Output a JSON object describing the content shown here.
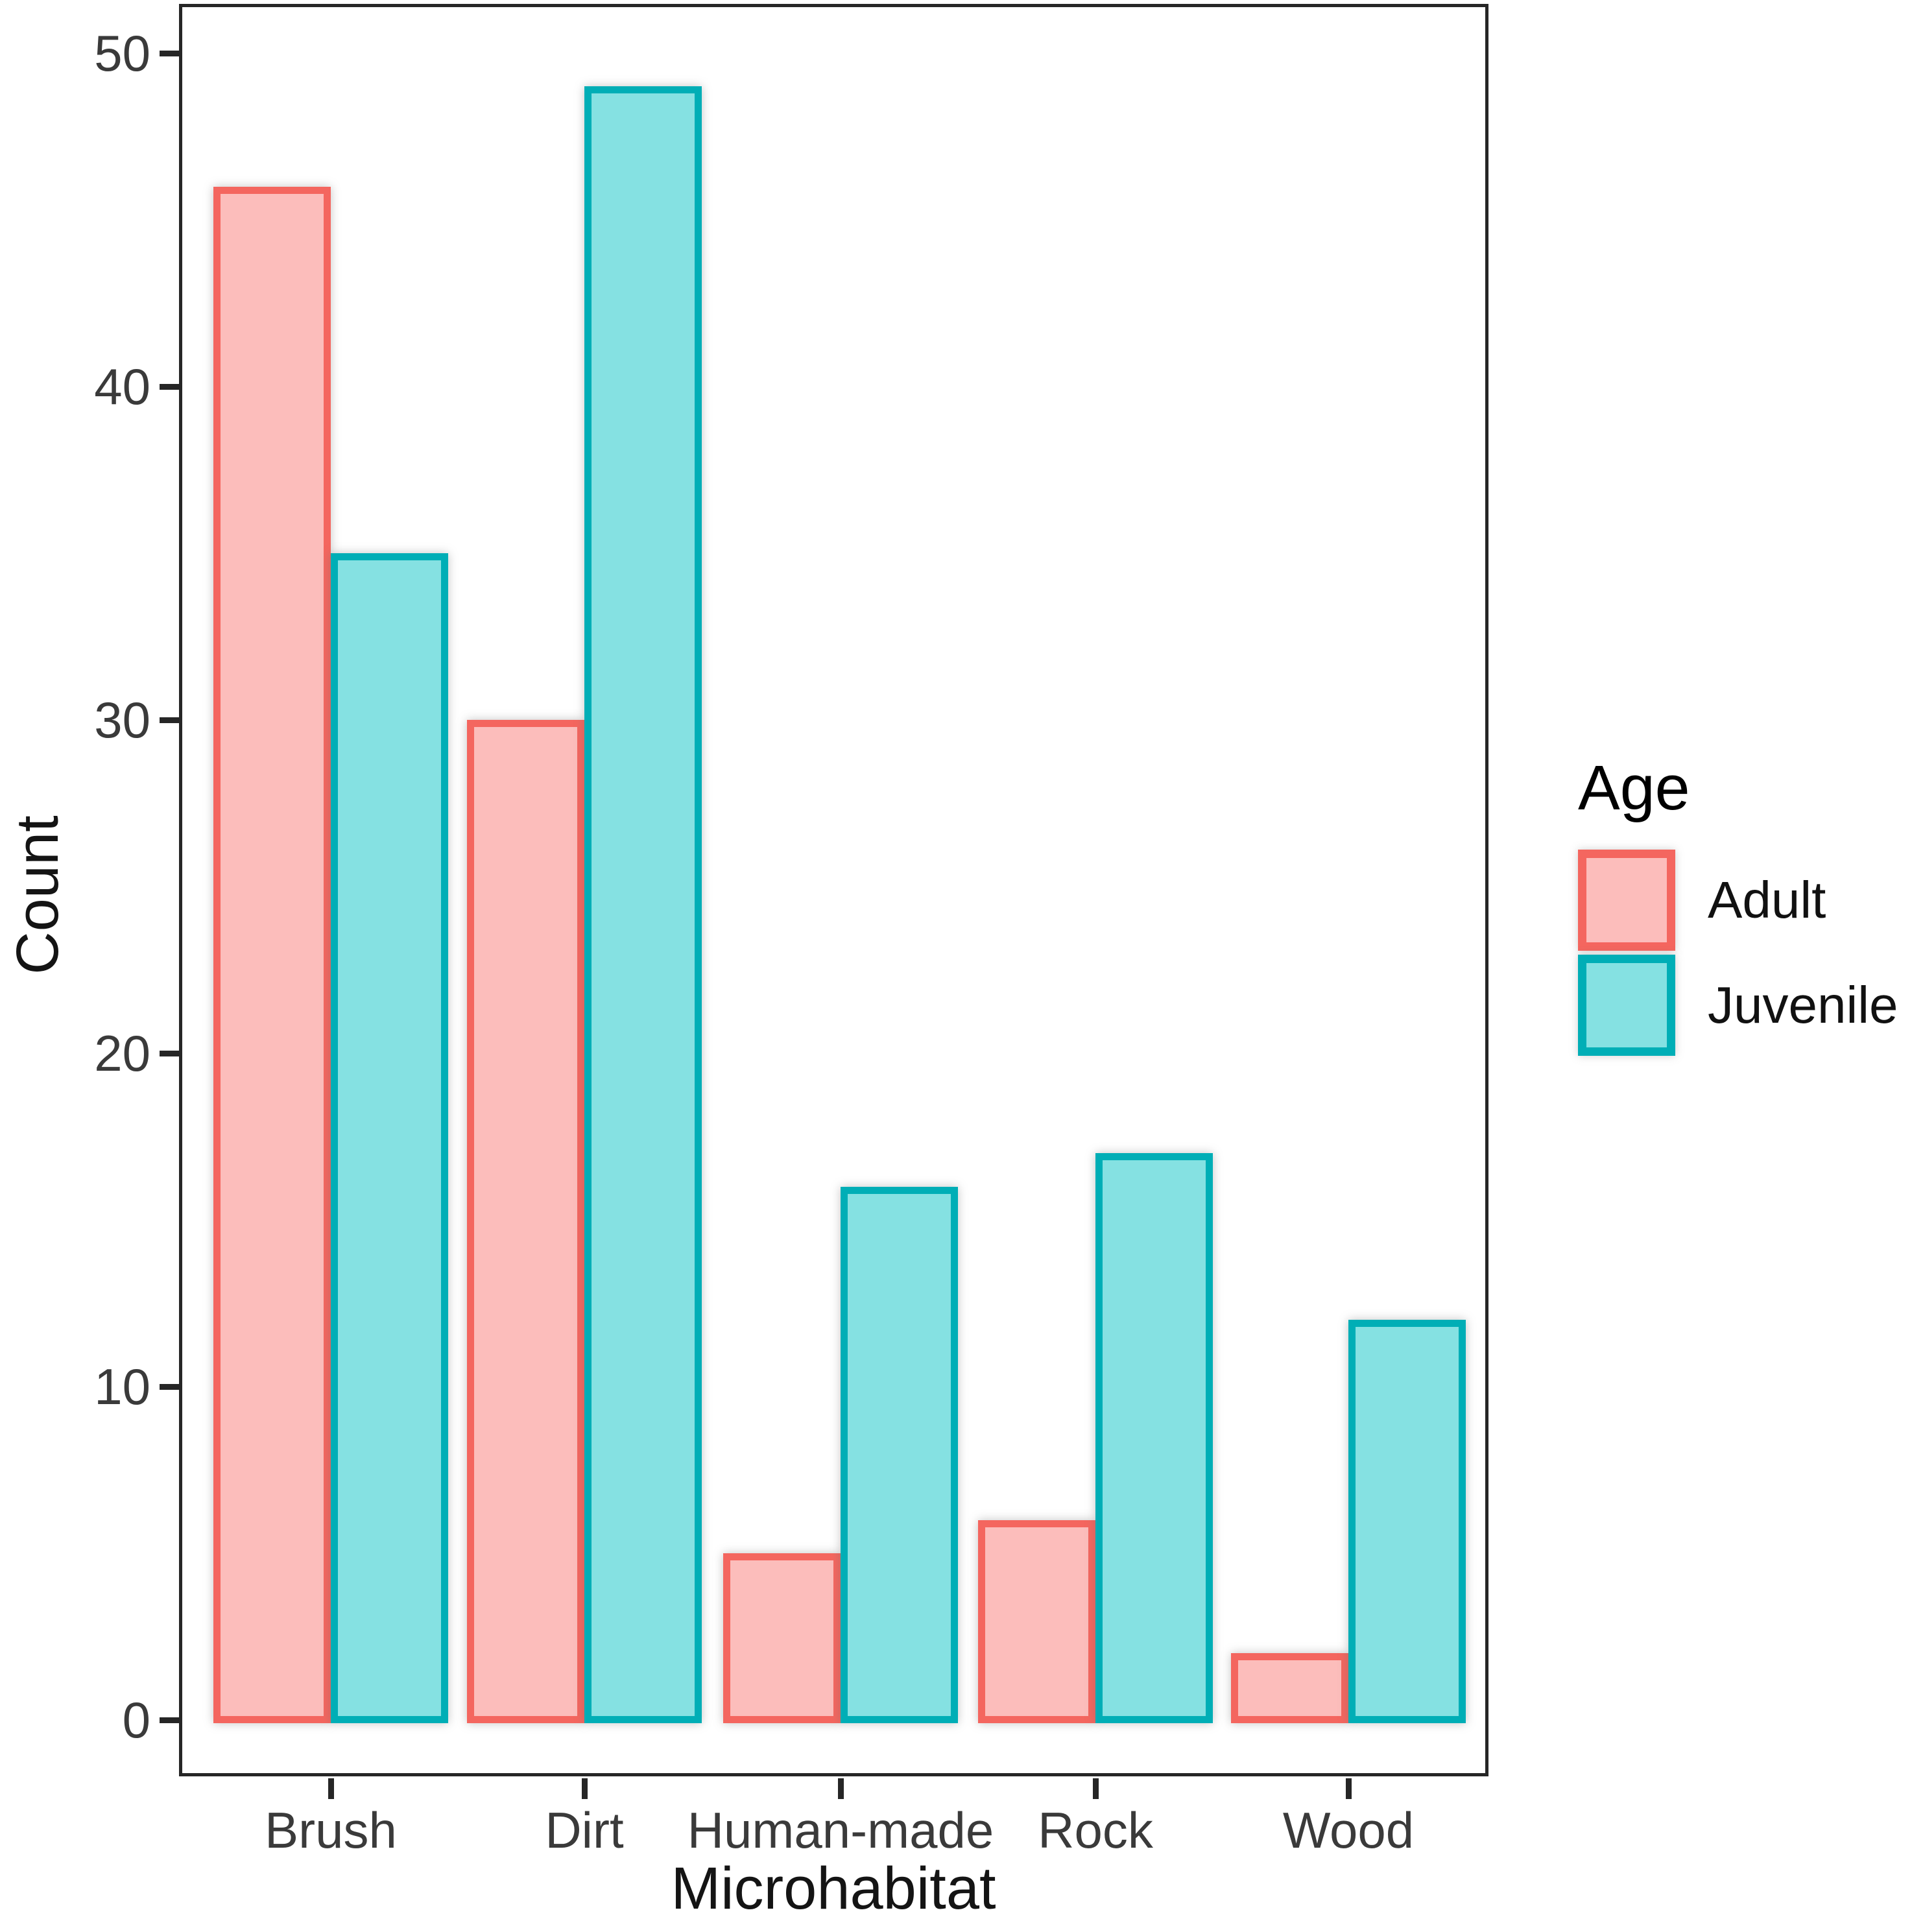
{
  "chart_data": {
    "type": "bar",
    "title": "",
    "xlabel": "Microhabitat",
    "ylabel": "Count",
    "categories": [
      "Brush",
      "Dirt",
      "Human-made",
      "Rock",
      "Wood"
    ],
    "series": [
      {
        "name": "Adult",
        "values": [
          46,
          30,
          5,
          6,
          2
        ],
        "fill": "#FCBDBB",
        "stroke": "#F4665F"
      },
      {
        "name": "Juvenile",
        "values": [
          35,
          49,
          16,
          17,
          12
        ],
        "fill": "#85E1E2",
        "stroke": "#00AEB6"
      }
    ],
    "yticks": [
      0,
      10,
      20,
      30,
      40,
      50
    ],
    "ylim": [
      0,
      50
    ],
    "grid": false,
    "legend": {
      "title": "Age",
      "position": "right"
    }
  }
}
